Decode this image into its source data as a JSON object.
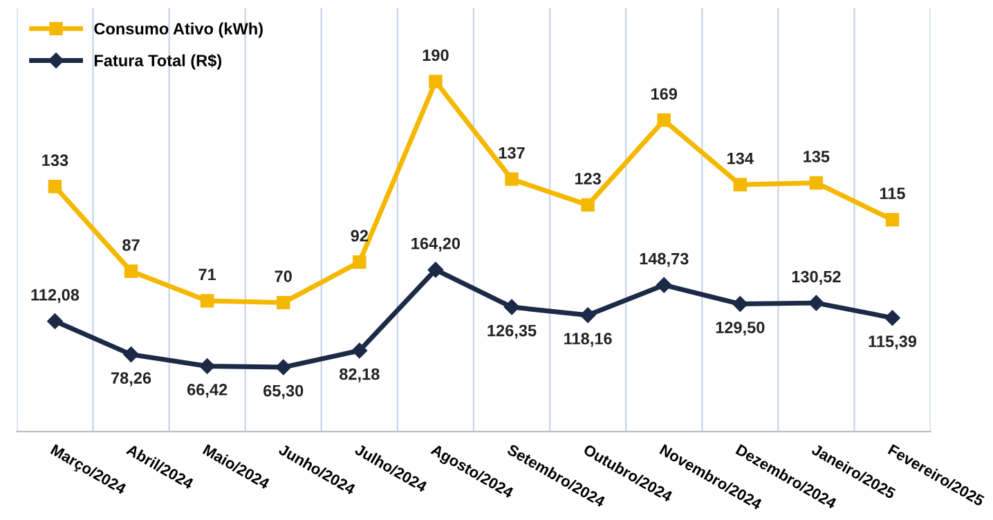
{
  "chart_data": {
    "type": "line",
    "categories": [
      "Março/2024",
      "Abril/2024",
      "Maio/2024",
      "Junho/2024",
      "Julho/2024",
      "Agosto/2024",
      "Setembro/2024",
      "Outubro/2024",
      "Novembro/2024",
      "Dezembro/2024",
      "Janeiro/2025",
      "Fevereiro/2025"
    ],
    "series": [
      {
        "name": "Consumo Ativo (kWh)",
        "color": "#f5b800",
        "marker": "square",
        "values": [
          133,
          87,
          71,
          70,
          92,
          190,
          137,
          123,
          169,
          134,
          135,
          115
        ],
        "value_labels": [
          "133",
          "87",
          "71",
          "70",
          "92",
          "190",
          "137",
          "123",
          "169",
          "134",
          "135",
          "115"
        ]
      },
      {
        "name": "Fatura Total (R$)",
        "color": "#1c2a48",
        "marker": "diamond",
        "axis": "y2",
        "values": [
          112.08,
          78.26,
          66.42,
          65.3,
          82.18,
          164.2,
          126.35,
          118.16,
          148.73,
          129.5,
          130.52,
          115.39
        ],
        "value_labels": [
          "112,08",
          "78,26",
          "66,42",
          "65,30",
          "82,18",
          "164,20",
          "126,35",
          "118,16",
          "148,73",
          "129,50",
          "130,52",
          "115,39"
        ]
      }
    ],
    "ylim": [
      0,
      230
    ],
    "y2lim": [
      0,
      430
    ],
    "grid": "x",
    "legend": "top left",
    "tick_labels": "x"
  }
}
